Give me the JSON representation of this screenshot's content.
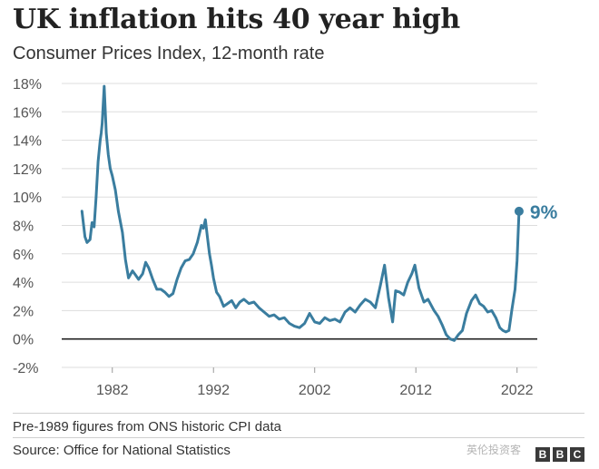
{
  "chart_data": {
    "type": "line",
    "title": "UK inflation hits 40 year high",
    "subtitle": "Consumer Prices Index, 12-month rate",
    "xlabel": "",
    "ylabel": "",
    "xlim": [
      1977,
      2024
    ],
    "ylim": [
      -2,
      18
    ],
    "y_ticks": [
      18,
      16,
      14,
      12,
      10,
      8,
      6,
      4,
      2,
      0,
      -2
    ],
    "y_tick_labels": [
      "18%",
      "16%",
      "14%",
      "12%",
      "10%",
      "8%",
      "6%",
      "4%",
      "2%",
      "0%",
      "-2%"
    ],
    "x_ticks": [
      1982,
      1992,
      2002,
      2012,
      2022
    ],
    "x_tick_labels": [
      "1982",
      "1992",
      "2002",
      "2012",
      "2022"
    ],
    "grid": true,
    "line_color": "#3a7d9f",
    "series": [
      {
        "x": [
          1979.0,
          1979.3,
          1979.5,
          1979.8,
          1980.0,
          1980.2,
          1980.4,
          1980.6,
          1980.8,
          1980.9,
          1981.0,
          1981.2,
          1981.4,
          1981.6,
          1981.8,
          1982.0,
          1982.3,
          1982.6,
          1983.0,
          1983.3,
          1983.6,
          1984.0,
          1984.3,
          1984.6,
          1985.0,
          1985.3,
          1985.6,
          1986.0,
          1986.4,
          1986.8,
          1987.2,
          1987.6,
          1988.0,
          1988.4,
          1988.8,
          1989.2,
          1989.6,
          1990.0,
          1990.4,
          1990.8,
          1991.0,
          1991.2,
          1991.4,
          1991.6,
          1991.8,
          1992.0,
          1992.3,
          1992.6,
          1993.0,
          1993.4,
          1993.8,
          1994.2,
          1994.6,
          1995.0,
          1995.5,
          1996.0,
          1996.5,
          1997.0,
          1997.5,
          1998.0,
          1998.5,
          1999.0,
          1999.5,
          2000.0,
          2000.5,
          2001.0,
          2001.5,
          2002.0,
          2002.5,
          2003.0,
          2003.5,
          2004.0,
          2004.5,
          2005.0,
          2005.5,
          2006.0,
          2006.5,
          2007.0,
          2007.5,
          2008.0,
          2008.5,
          2008.9,
          2009.3,
          2009.7,
          2010.0,
          2010.4,
          2010.8,
          2011.2,
          2011.6,
          2011.9,
          2012.3,
          2012.8,
          2013.2,
          2013.8,
          2014.2,
          2014.6,
          2015.0,
          2015.4,
          2015.8,
          2016.2,
          2016.6,
          2017.0,
          2017.5,
          2017.9,
          2018.3,
          2018.7,
          2019.1,
          2019.5,
          2019.9,
          2020.3,
          2020.6,
          2020.9,
          2021.2,
          2021.5,
          2021.8,
          2022.0,
          2022.2
        ],
        "y": [
          9.0,
          7.2,
          6.8,
          7.0,
          8.2,
          7.9,
          10.0,
          12.5,
          14.0,
          14.5,
          15.2,
          17.8,
          14.5,
          13.0,
          12.0,
          11.5,
          10.5,
          9.0,
          7.5,
          5.6,
          4.3,
          4.8,
          4.5,
          4.2,
          4.6,
          5.4,
          5.0,
          4.2,
          3.5,
          3.5,
          3.3,
          3.0,
          3.2,
          4.2,
          5.0,
          5.5,
          5.6,
          6.0,
          6.8,
          8.0,
          7.8,
          8.4,
          7.2,
          6.0,
          5.2,
          4.3,
          3.3,
          3.0,
          2.3,
          2.5,
          2.7,
          2.2,
          2.6,
          2.8,
          2.5,
          2.6,
          2.2,
          1.9,
          1.6,
          1.7,
          1.4,
          1.5,
          1.1,
          0.9,
          0.8,
          1.1,
          1.8,
          1.2,
          1.1,
          1.5,
          1.3,
          1.4,
          1.2,
          1.9,
          2.2,
          1.9,
          2.4,
          2.8,
          2.6,
          2.2,
          3.8,
          5.2,
          2.9,
          1.2,
          3.4,
          3.3,
          3.1,
          4.0,
          4.6,
          5.2,
          3.6,
          2.6,
          2.8,
          2.0,
          1.6,
          1.0,
          0.3,
          0.0,
          -0.1,
          0.3,
          0.6,
          1.8,
          2.7,
          3.1,
          2.5,
          2.3,
          1.9,
          2.0,
          1.5,
          0.8,
          0.6,
          0.5,
          0.6,
          2.1,
          3.5,
          5.5,
          9.0
        ]
      }
    ],
    "end_label": "9%",
    "note": "Pre-1989 figures from ONS historic CPI data",
    "source": "Source: Office for National Statistics",
    "watermark": "英伦投资客",
    "logo_letters": [
      "B",
      "B",
      "C"
    ]
  }
}
